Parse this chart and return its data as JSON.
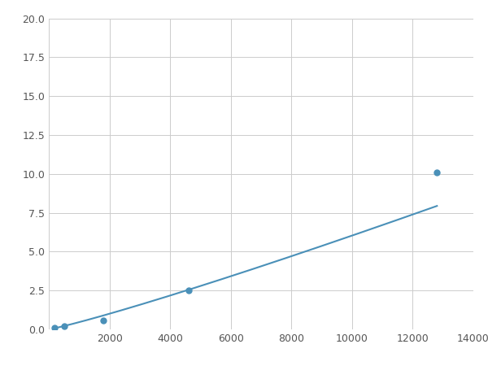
{
  "x_data": [
    200,
    500,
    1800,
    4600,
    12800
  ],
  "y_data": [
    0.1,
    0.2,
    0.6,
    2.5,
    10.1
  ],
  "line_color": "#4a90b8",
  "marker_color": "#4a90b8",
  "marker_size": 5,
  "xlim": [
    0,
    14000
  ],
  "ylim": [
    0,
    20.0
  ],
  "xticks": [
    0,
    2000,
    4000,
    6000,
    8000,
    10000,
    12000,
    14000
  ],
  "yticks": [
    0.0,
    2.5,
    5.0,
    7.5,
    10.0,
    12.5,
    15.0,
    17.5,
    20.0
  ],
  "grid": true,
  "background_color": "#ffffff",
  "line_width": 1.5
}
